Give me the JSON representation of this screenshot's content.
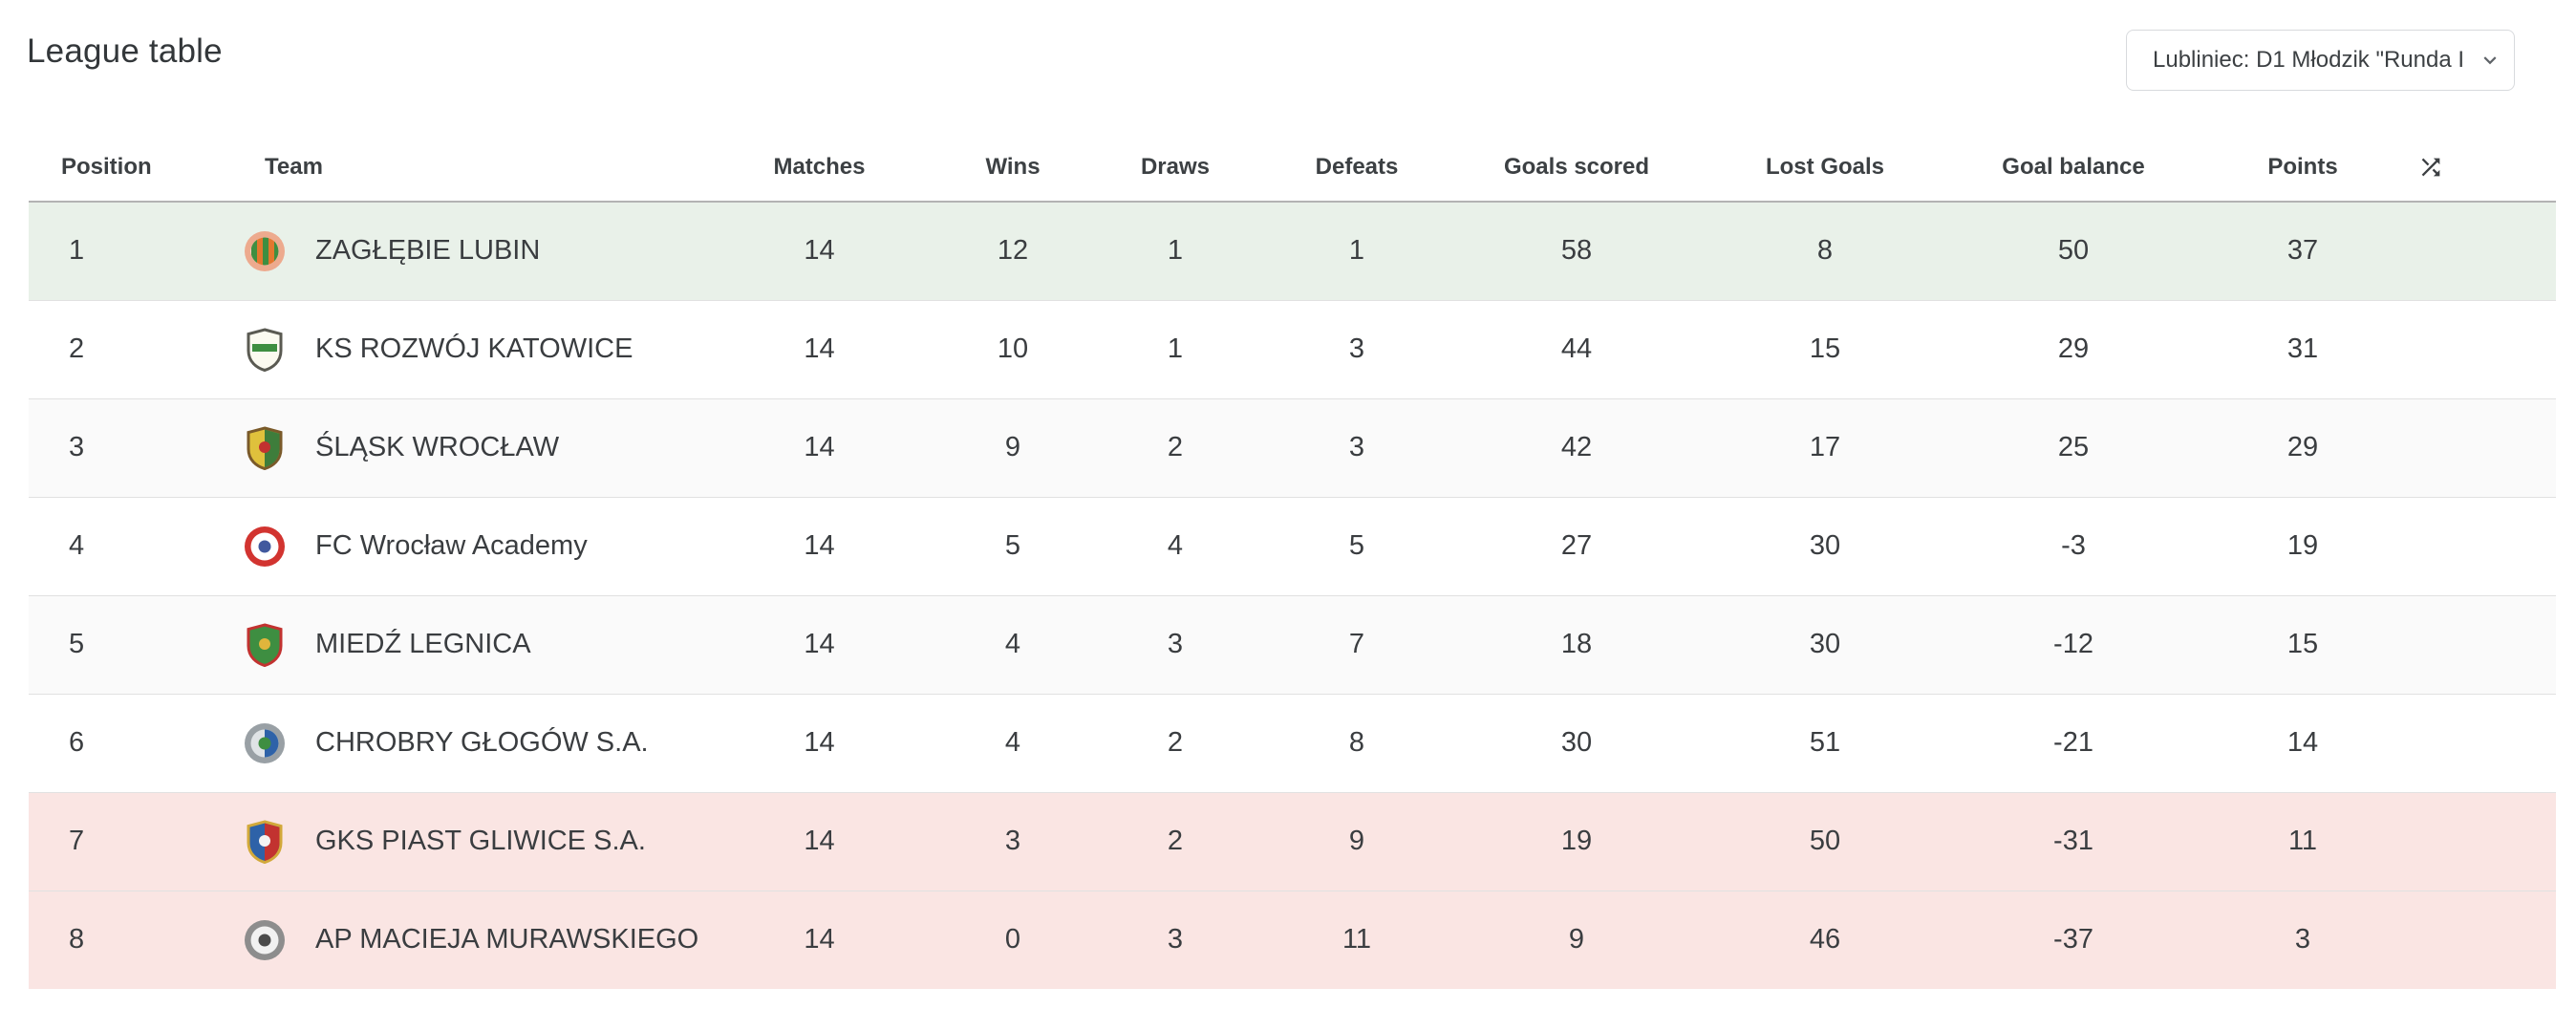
{
  "page": {
    "title": "League table"
  },
  "league_selector": {
    "value": "Lubliniec: D1 Młodzik \"Runda I",
    "chevron_icon": "chevron-down"
  },
  "icons": {
    "shuffle": "shuffle-crossed-arrows",
    "chevron": "chevron-down"
  },
  "colors": {
    "promotion_row_bg": "#e9f1e9",
    "relegation_row_bg": "#fae5e3",
    "stripe_row_bg": "#fafafa",
    "header_text": "#3c4043",
    "cell_text": "#3a3d40",
    "table_top_border": "#b3b3b3",
    "row_divider": "#e1e1e1",
    "selector_border": "#d8dadd"
  },
  "table": {
    "headers": {
      "position": "Position",
      "team": "Team",
      "matches": "Matches",
      "wins": "Wins",
      "draws": "Draws",
      "defeats": "Defeats",
      "goals_scored": "Goals scored",
      "lost_goals": "Lost Goals",
      "goal_balance": "Goal balance",
      "points": "Points"
    },
    "rows": [
      {
        "position": "1",
        "team": "ZAGŁĘBIE LUBIN",
        "matches": "14",
        "wins": "12",
        "draws": "1",
        "defeats": "1",
        "goals_scored": "58",
        "lost_goals": "8",
        "goal_balance": "50",
        "points": "37",
        "zone": "promotion",
        "crest": {
          "shape": "circle",
          "ring": "#edaa8e",
          "bg": "#ffffff",
          "stripes": [
            "#3e8e41",
            "#e2772e"
          ]
        }
      },
      {
        "position": "2",
        "team": "KS ROZWÓJ KATOWICE",
        "matches": "14",
        "wins": "10",
        "draws": "1",
        "defeats": "3",
        "goals_scored": "44",
        "lost_goals": "15",
        "goal_balance": "29",
        "points": "31",
        "zone": "",
        "crest": {
          "shape": "shield",
          "ring": "#5a5a52",
          "bg": "#fbfaf0",
          "band": "#3e8e41"
        }
      },
      {
        "position": "3",
        "team": "ŚLĄSK WROCŁAW",
        "matches": "14",
        "wins": "9",
        "draws": "2",
        "defeats": "3",
        "goals_scored": "42",
        "lost_goals": "17",
        "goal_balance": "25",
        "points": "29",
        "zone": "",
        "crest": {
          "shape": "shield",
          "ring": "#7a5a2a",
          "bg": "#dfc13c",
          "split": "#3e7d3b",
          "dot": "#c23230"
        }
      },
      {
        "position": "4",
        "team": "FC Wrocław Academy",
        "matches": "14",
        "wins": "5",
        "draws": "4",
        "defeats": "5",
        "goals_scored": "27",
        "lost_goals": "30",
        "goal_balance": "-3",
        "points": "19",
        "zone": "",
        "crest": {
          "shape": "circle",
          "ring": "#d23430",
          "bg": "#ffffff",
          "dot": "#41599e"
        }
      },
      {
        "position": "5",
        "team": "MIEDŹ LEGNICA",
        "matches": "14",
        "wins": "4",
        "draws": "3",
        "defeats": "7",
        "goals_scored": "18",
        "lost_goals": "30",
        "goal_balance": "-12",
        "points": "15",
        "zone": "",
        "crest": {
          "shape": "shield",
          "ring": "#c23230",
          "bg": "#3e8e41",
          "dot": "#e0b53c"
        }
      },
      {
        "position": "6",
        "team": "CHROBRY GŁOGÓW S.A.",
        "matches": "14",
        "wins": "4",
        "draws": "2",
        "defeats": "8",
        "goals_scored": "30",
        "lost_goals": "51",
        "goal_balance": "-21",
        "points": "14",
        "zone": "",
        "crest": {
          "shape": "circle",
          "ring": "#99a0a5",
          "bg": "#dfe3e6",
          "split": "#2e62a8",
          "dot": "#3e8e41"
        }
      },
      {
        "position": "7",
        "team": "GKS PIAST GLIWICE S.A.",
        "matches": "14",
        "wins": "3",
        "draws": "2",
        "defeats": "9",
        "goals_scored": "19",
        "lost_goals": "50",
        "goal_balance": "-31",
        "points": "11",
        "zone": "relegation",
        "crest": {
          "shape": "shield",
          "ring": "#d2a93a",
          "bg": "#2e62a8",
          "split": "#c23230",
          "dot": "#f3f3f3"
        }
      },
      {
        "position": "8",
        "team": "AP MACIEJA MURAWSKIEGO",
        "matches": "14",
        "wins": "0",
        "draws": "3",
        "defeats": "11",
        "goals_scored": "9",
        "lost_goals": "46",
        "goal_balance": "-37",
        "points": "3",
        "zone": "relegation",
        "crest": {
          "shape": "circle",
          "ring": "#8d8d8d",
          "bg": "#f1f1f1",
          "dot": "#4a4a4a"
        }
      }
    ]
  }
}
